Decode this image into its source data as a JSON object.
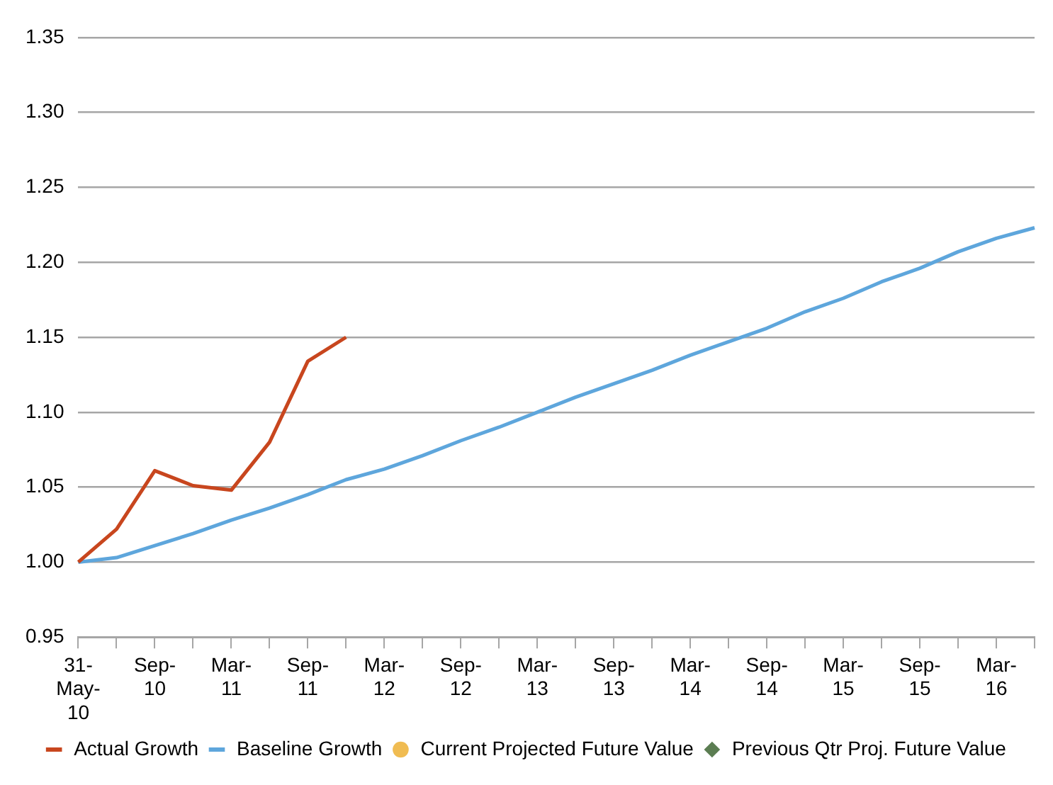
{
  "chart_data": {
    "type": "line",
    "categories": [
      "31-May-10",
      null,
      "Sep-10",
      null,
      "Mar-11",
      null,
      "Sep-11",
      null,
      "Mar-12",
      null,
      "Sep-12",
      null,
      "Mar-13",
      null,
      "Sep-13",
      null,
      "Mar-14",
      null,
      "Sep-14",
      null,
      "Mar-15",
      null,
      "Sep-15",
      null,
      "Mar-16",
      null
    ],
    "series": [
      {
        "name": "Actual Growth",
        "color": "#c8461e",
        "marker": "none",
        "values": [
          1.0,
          1.022,
          1.061,
          1.051,
          1.048,
          1.08,
          1.134,
          1.15,
          null,
          null,
          null,
          null,
          null,
          null,
          null,
          null,
          null,
          null,
          null,
          null,
          null,
          null,
          null,
          null,
          null,
          null
        ]
      },
      {
        "name": "Baseline Growth",
        "color": "#5ea6dc",
        "marker": "none",
        "values": [
          1.0,
          1.003,
          1.011,
          1.019,
          1.028,
          1.036,
          1.045,
          1.055,
          1.062,
          1.071,
          1.081,
          1.09,
          1.1,
          1.11,
          1.119,
          1.128,
          1.138,
          1.147,
          1.156,
          1.167,
          1.176,
          1.187,
          1.196,
          1.207,
          1.216,
          1.223
        ]
      },
      {
        "name": "Current Projected Future Value",
        "type": "scatter",
        "color": "#f0bc52",
        "marker": "circle",
        "values": [
          null,
          null,
          null,
          null,
          null,
          null,
          null,
          null,
          null,
          null,
          null,
          null,
          null,
          null,
          null,
          null,
          null,
          null,
          null,
          null,
          null,
          null,
          null,
          null,
          null,
          null
        ]
      },
      {
        "name": "Previous Qtr Proj. Future Value",
        "type": "scatter",
        "color": "#5b7d52",
        "marker": "diamond",
        "values": [
          null,
          null,
          null,
          null,
          null,
          null,
          null,
          null,
          null,
          null,
          null,
          null,
          null,
          null,
          null,
          null,
          null,
          null,
          null,
          null,
          null,
          null,
          null,
          null,
          null,
          null
        ]
      }
    ],
    "ylim": [
      0.95,
      1.35
    ],
    "yticks": [
      0.95,
      {
        "value": 1.0,
        "label": "1.00"
      },
      1.05,
      {
        "value": 1.1,
        "label": "1.10"
      },
      1.15,
      {
        "value": 1.2,
        "label": "1.20"
      },
      1.25,
      {
        "value": 1.3,
        "label": "1.30"
      },
      1.35
    ],
    "grid": "y",
    "legend": "bottom",
    "line_style": "solid"
  }
}
